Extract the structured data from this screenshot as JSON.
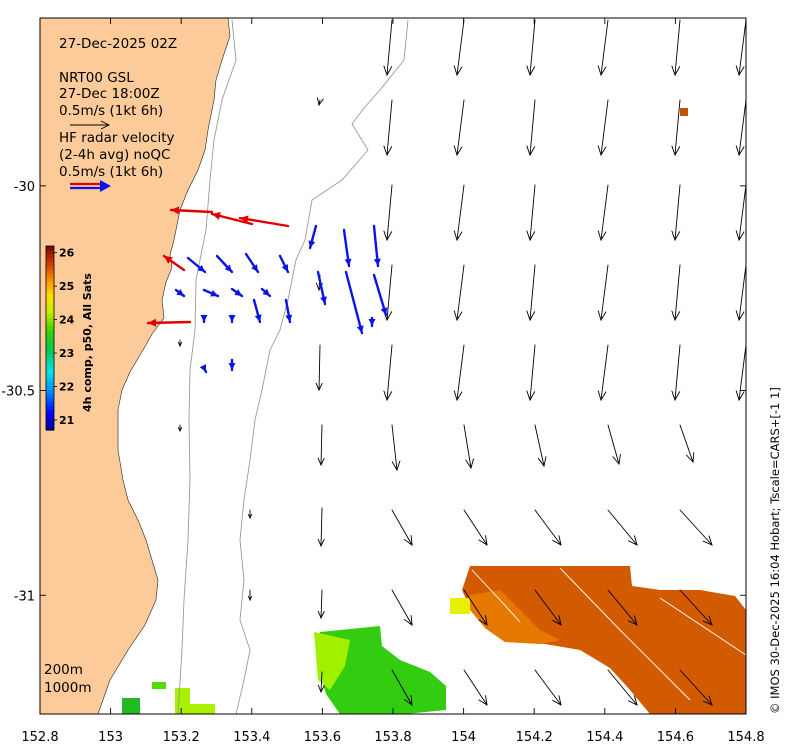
{
  "title_block": {
    "date": "27-Dec-2025 02Z",
    "model_name": "NRT00 GSL",
    "model_time": "27-Dec 18:00Z",
    "model_scale": "0.5m/s (1kt 6h)",
    "radar_title": "HF radar velocity",
    "radar_detail": "(2-4h avg) noQC",
    "radar_scale": "0.5m/s (1kt 6h)"
  },
  "axes": {
    "x_ticks": [
      "152.8",
      "153",
      "153.2",
      "153.4",
      "153.6",
      "153.8",
      "154",
      "154.2",
      "154.4",
      "154.6",
      "154.8"
    ],
    "y_ticks": [
      "-30",
      "-30.5",
      "-31"
    ],
    "lon_range": [
      152.8,
      154.8
    ],
    "lat_range": [
      -29.59,
      -31.29
    ]
  },
  "colorbar": {
    "title": "4h comp, p50, All Sats",
    "ticks": [
      "26",
      "25",
      "24",
      "23",
      "22",
      "21"
    ],
    "range": [
      20.7,
      26.2
    ]
  },
  "contours": {
    "shallow": "200m",
    "deep": "1000m"
  },
  "credit": "© IMOS 30-Dec-2025 16:04 Hobart; Tscale=CARS+[-1 1]",
  "colors": {
    "land": "#fdcb99",
    "model_arrow": "#000000",
    "radar_onshore": "#e00000",
    "radar_offshore": "#0a14e6",
    "sst_warm": "#d25a00",
    "sst_cool": "#33cc00"
  }
}
